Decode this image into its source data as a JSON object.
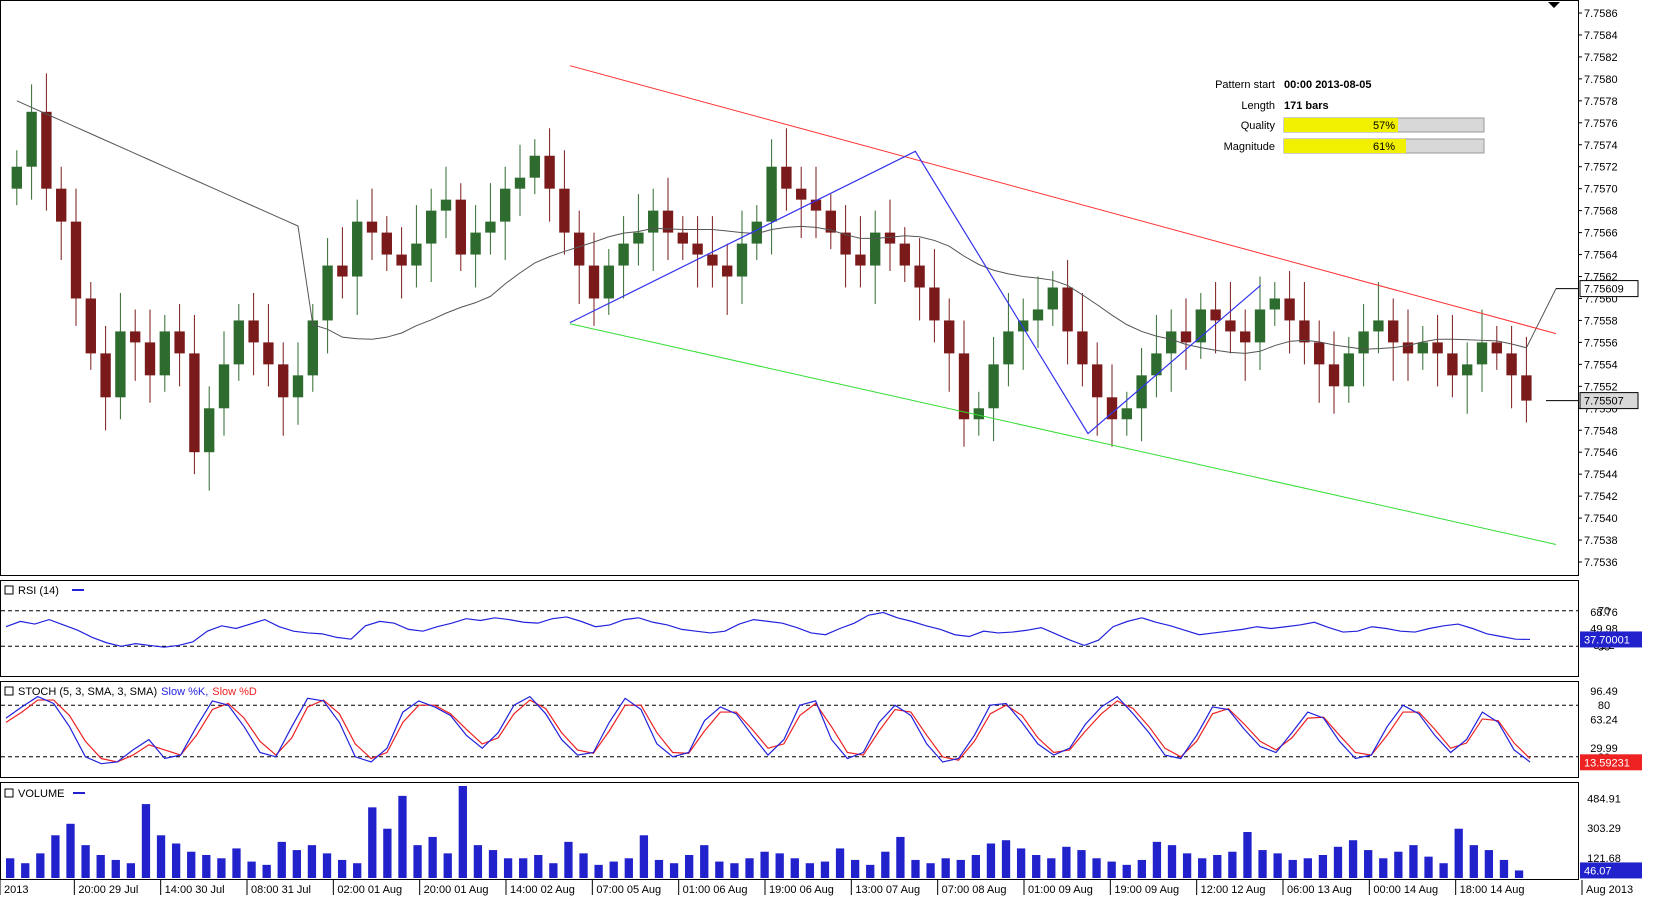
{
  "main": {
    "price_ticks": [
      "7.7586",
      "7.7584",
      "7.7582",
      "7.7580",
      "7.7578",
      "7.7576",
      "7.7574",
      "7.7572",
      "7.7570",
      "7.7568",
      "7.7566",
      "7.7564",
      "7.7562",
      "7.7560",
      "7.7558",
      "7.7556",
      "7.7554",
      "7.7552",
      "7.7550",
      "7.7548",
      "7.7546",
      "7.7544",
      "7.7542",
      "7.7540",
      "7.7538",
      "7.7536"
    ],
    "ma_tag": "7.75609",
    "last_tag": "7.75507"
  },
  "pattern_info": {
    "pattern_start_label": "Pattern start",
    "pattern_start_value": "00:00 2013-08-05",
    "length_label": "Length",
    "length_value": "171 bars",
    "quality_label": "Quality",
    "quality_value": "57%",
    "quality_fraction": 0.57,
    "magnitude_label": "Magnitude",
    "magnitude_value": "61%",
    "magnitude_fraction": 0.61
  },
  "rsi": {
    "title": "RSI (14)",
    "levels": [
      "70",
      "68.76",
      "49.98",
      "30",
      "31.2"
    ],
    "tag": "37.70001"
  },
  "stoch": {
    "title": "STOCH (5, 3, SMA, 3, SMA)",
    "k_label": "Slow %K,",
    "d_label": "Slow %D",
    "levels": [
      "96.49",
      "80",
      "63.24",
      "29.99",
      "20"
    ],
    "tag": "13.59231"
  },
  "volume": {
    "title": "VOLUME",
    "levels": [
      "484.91",
      "303.29",
      "121.68"
    ],
    "tag": "46.07"
  },
  "time_axis": [
    "2013",
    "20:00 29 Jul",
    "14:00 30 Jul",
    "08:00 31 Jul",
    "02:00 01 Aug",
    "20:00 01 Aug",
    "14:00 02 Aug",
    "07:00 05 Aug",
    "01:00 06 Aug",
    "19:00 06 Aug",
    "13:00 07 Aug",
    "07:00 08 Aug",
    "01:00 09 Aug",
    "19:00 09 Aug",
    "12:00 12 Aug",
    "06:00 13 Aug",
    "00:00 14 Aug",
    "18:00 14 Aug",
    "Aug 2013"
  ],
  "colors": {
    "bull": "#2e6b2e",
    "bear": "#7a1a1a",
    "resistance": "#ff3030",
    "support": "#33dd33",
    "pattern": "#3333ee",
    "ma": "#555555",
    "rsi": "#2222dd",
    "stoch_k": "#2222dd",
    "stoch_d": "#ee2222",
    "volume": "#2222cc",
    "bar_fill": "#f0f000"
  },
  "chart_data": [
    {
      "type": "candlestick",
      "title": "",
      "ylim": [
        7.7535,
        7.7587
      ],
      "pattern": "descending channel",
      "pattern_points": [
        {
          "time": "14:00 02 Aug",
          "price": 7.75578
        },
        {
          "time": "13:00 07 Aug",
          "price": 7.75734
        },
        {
          "time": "01:00 09 Aug",
          "price": 7.75477
        },
        {
          "time": "12:00 12 Aug",
          "price": 7.75612
        }
      ],
      "resistance_line": [
        {
          "time": "14:00 02 Aug",
          "price": 7.75812
        },
        {
          "time": "Aug 2013",
          "price": 7.75568
        }
      ],
      "support_line": [
        {
          "time": "14:00 02 Aug",
          "price": 7.75577
        },
        {
          "time": "Aug 2013",
          "price": 7.75376
        }
      ],
      "moving_average_last": 7.75609,
      "last_close": 7.75507,
      "approx_closes": [
        7.7572,
        7.7577,
        7.757,
        7.7567,
        7.756,
        7.7555,
        7.7551,
        7.7557,
        7.7556,
        7.7553,
        7.7557,
        7.7555,
        7.7546,
        7.755,
        7.7554,
        7.7558,
        7.7556,
        7.7554,
        7.7551,
        7.7553,
        7.7558,
        7.7563,
        7.7562,
        7.7567,
        7.7566,
        7.7564,
        7.7563,
        7.7565,
        7.7568,
        7.7569,
        7.7564,
        7.7566,
        7.7567,
        7.757,
        7.7571,
        7.7573,
        7.757,
        7.7566,
        7.7563,
        7.756,
        7.7563,
        7.7565,
        7.7566,
        7.7568,
        7.7566,
        7.7565,
        7.7564,
        7.7563,
        7.7562,
        7.7565,
        7.7567,
        7.7572,
        7.757,
        7.7569,
        7.7568,
        7.7566,
        7.7564,
        7.7563,
        7.7566,
        7.7565,
        7.7563,
        7.7561,
        7.7558,
        7.7555,
        7.7549,
        7.755,
        7.7554,
        7.7557,
        7.7558,
        7.7559,
        7.7561,
        7.7557,
        7.7554,
        7.7551,
        7.7549,
        7.755,
        7.7553,
        7.7555,
        7.7557,
        7.7556,
        7.7559,
        7.7558,
        7.7557,
        7.7556,
        7.7559,
        7.756,
        7.7558,
        7.7556,
        7.7554,
        7.7552,
        7.7555,
        7.7557,
        7.7558,
        7.7556,
        7.7555,
        7.7556,
        7.7555,
        7.7553,
        7.7554,
        7.7556,
        7.7555,
        7.7553,
        7.75507
      ]
    },
    {
      "type": "line",
      "title": "RSI (14)",
      "ylim": [
        0,
        100
      ],
      "levels": [
        30,
        70
      ],
      "last": 37.70001,
      "values": [
        52,
        58,
        55,
        60,
        54,
        48,
        40,
        34,
        30,
        33,
        31,
        29,
        31,
        35,
        47,
        53,
        50,
        55,
        60,
        52,
        47,
        45,
        44,
        40,
        38,
        53,
        58,
        56,
        49,
        47,
        52,
        56,
        61,
        59,
        62,
        60,
        57,
        56,
        61,
        63,
        58,
        52,
        54,
        60,
        62,
        57,
        54,
        49,
        47,
        45,
        47,
        55,
        60,
        58,
        56,
        51,
        45,
        43,
        50,
        56,
        65,
        68,
        62,
        58,
        53,
        49,
        43,
        41,
        47,
        45,
        46,
        48,
        51,
        44,
        37,
        31,
        37,
        52,
        58,
        62,
        57,
        53,
        48,
        43,
        45,
        47,
        49,
        52,
        50,
        52,
        54,
        57,
        51,
        46,
        47,
        52,
        50,
        47,
        46,
        50,
        53,
        55,
        50,
        44,
        41,
        38,
        37.7
      ]
    },
    {
      "type": "line",
      "title": "STOCH (5, 3, SMA, 3, SMA)",
      "ylim": [
        0,
        100
      ],
      "levels": [
        20,
        80
      ],
      "last": 13.59231,
      "series": [
        {
          "name": "Slow %K",
          "values": [
            65,
            78,
            90,
            82,
            55,
            20,
            12,
            14,
            28,
            40,
            18,
            22,
            55,
            85,
            80,
            55,
            25,
            20,
            55,
            88,
            85,
            60,
            20,
            14,
            30,
            72,
            85,
            78,
            68,
            45,
            30,
            48,
            80,
            90,
            70,
            40,
            22,
            25,
            60,
            88,
            75,
            35,
            20,
            25,
            62,
            78,
            70,
            45,
            22,
            40,
            80,
            85,
            40,
            18,
            25,
            60,
            80,
            68,
            35,
            14,
            18,
            45,
            80,
            82,
            60,
            35,
            22,
            30,
            58,
            78,
            90,
            70,
            48,
            22,
            18,
            45,
            78,
            75,
            52,
            32,
            25,
            48,
            72,
            65,
            38,
            18,
            22,
            55,
            80,
            70,
            45,
            25,
            40,
            72,
            60,
            28,
            14
          ]
        },
        {
          "name": "Slow %D",
          "values": [
            60,
            72,
            86,
            86,
            68,
            38,
            18,
            14,
            22,
            34,
            28,
            22,
            45,
            75,
            82,
            65,
            38,
            22,
            42,
            78,
            86,
            70,
            35,
            18,
            25,
            60,
            80,
            80,
            70,
            52,
            35,
            42,
            70,
            86,
            76,
            48,
            28,
            24,
            50,
            80,
            80,
            48,
            25,
            24,
            50,
            72,
            72,
            52,
            30,
            35,
            68,
            82,
            55,
            25,
            22,
            50,
            75,
            72,
            45,
            20,
            16,
            38,
            70,
            80,
            68,
            42,
            25,
            28,
            50,
            70,
            85,
            76,
            55,
            30,
            20,
            38,
            70,
            76,
            58,
            38,
            28,
            42,
            65,
            66,
            45,
            25,
            22,
            45,
            72,
            72,
            52,
            30,
            36,
            64,
            62,
            36,
            18
          ]
        }
      ]
    },
    {
      "type": "bar",
      "title": "VOLUME",
      "last": 46.07,
      "values": [
        120,
        90,
        150,
        260,
        330,
        200,
        140,
        110,
        90,
        450,
        260,
        210,
        160,
        140,
        120,
        180,
        100,
        80,
        220,
        170,
        200,
        150,
        110,
        90,
        430,
        300,
        500,
        200,
        250,
        150,
        560,
        200,
        170,
        120,
        120,
        140,
        90,
        220,
        150,
        80,
        100,
        120,
        260,
        110,
        90,
        140,
        200,
        100,
        90,
        120,
        160,
        150,
        120,
        90,
        100,
        180,
        110,
        80,
        160,
        250,
        110,
        90,
        120,
        110,
        140,
        210,
        230,
        180,
        140,
        120,
        190,
        170,
        120,
        100,
        80,
        110,
        220,
        200,
        150,
        120,
        140,
        160,
        280,
        170,
        150,
        110,
        120,
        140,
        190,
        230,
        170,
        120,
        160,
        200,
        130,
        90,
        300,
        200,
        170,
        110,
        46
      ]
    }
  ]
}
